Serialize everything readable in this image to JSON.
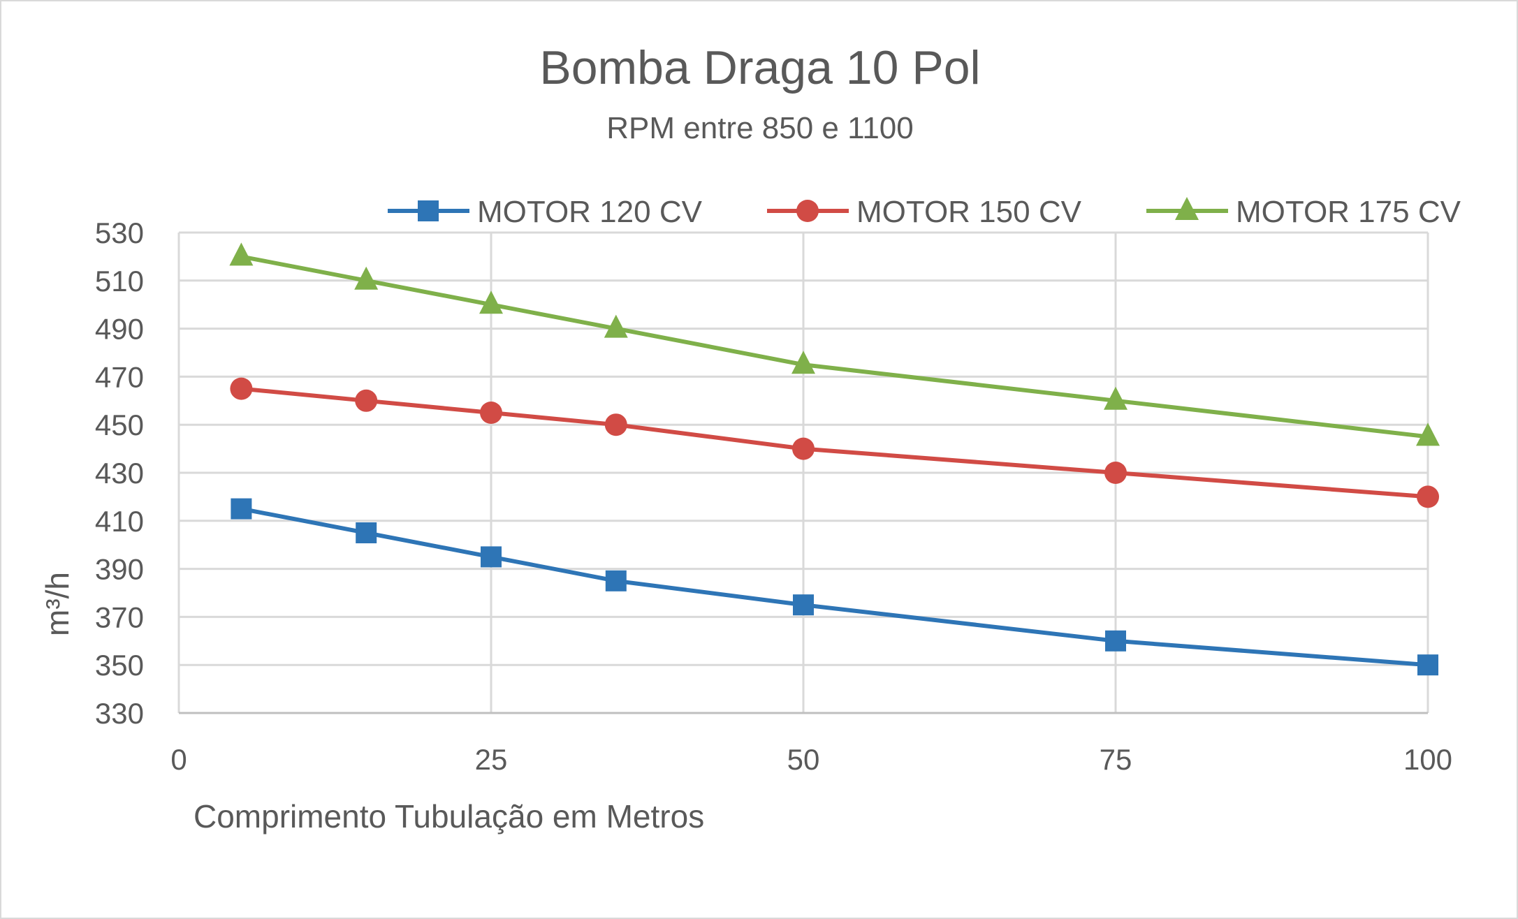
{
  "chart_data": {
    "type": "line",
    "title": "Bomba Draga 10 Pol",
    "subtitle": "RPM entre 850 e 1100",
    "xlabel": "Comprimento Tubulação em Metros",
    "ylabel": "m³/h",
    "xlim": [
      0,
      100
    ],
    "ylim": [
      330,
      530
    ],
    "xticks": [
      0,
      25,
      50,
      75,
      100
    ],
    "yticks": [
      330,
      350,
      370,
      390,
      410,
      430,
      450,
      470,
      490,
      510,
      530
    ],
    "grid": true,
    "legend_position": "top",
    "x": [
      5,
      15,
      25,
      35,
      50,
      75,
      100
    ],
    "series": [
      {
        "name": "MOTOR 120 CV",
        "color": "#2E75B6",
        "marker": "square",
        "values": [
          415,
          405,
          395,
          385,
          375,
          360,
          350
        ]
      },
      {
        "name": "MOTOR 150 CV",
        "color": "#D14B45",
        "marker": "circle",
        "values": [
          465,
          460,
          455,
          450,
          440,
          430,
          420
        ]
      },
      {
        "name": "MOTOR 175 CV",
        "color": "#7FB04A",
        "marker": "triangle",
        "values": [
          520,
          510,
          500,
          490,
          475,
          460,
          445
        ]
      }
    ]
  }
}
